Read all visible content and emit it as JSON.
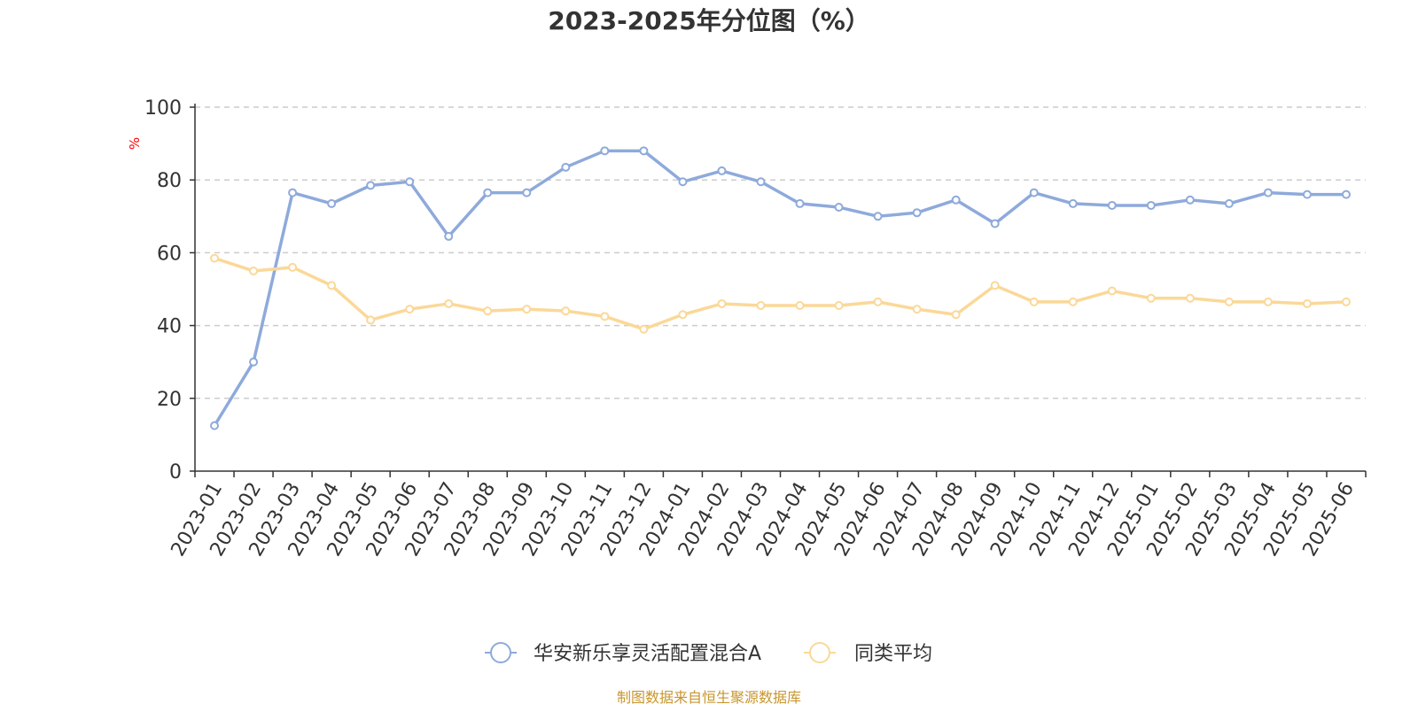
{
  "chart_data": {
    "type": "line",
    "title": "2023-2025年分位图（%）",
    "ylabel": "%",
    "xlabel": "",
    "ylim": [
      0,
      100
    ],
    "yticks": [
      0,
      20,
      40,
      60,
      80,
      100
    ],
    "grid": true,
    "legend_position": "bottom",
    "categories": [
      "2023-01",
      "2023-02",
      "2023-03",
      "2023-04",
      "2023-05",
      "2023-06",
      "2023-07",
      "2023-08",
      "2023-09",
      "2023-10",
      "2023-11",
      "2023-12",
      "2024-01",
      "2024-02",
      "2024-03",
      "2024-04",
      "2024-05",
      "2024-06",
      "2024-07",
      "2024-08",
      "2024-09",
      "2024-10",
      "2024-11",
      "2024-12",
      "2025-01",
      "2025-02",
      "2025-03",
      "2025-04",
      "2025-05",
      "2025-06"
    ],
    "series": [
      {
        "name": "华安新乐享灵活配置混合A",
        "color": "#8eaadb",
        "values": [
          12.5,
          30.0,
          76.5,
          73.5,
          78.5,
          79.5,
          64.5,
          76.5,
          76.5,
          83.5,
          88.0,
          88.0,
          79.5,
          82.5,
          79.5,
          73.5,
          72.5,
          70.0,
          71.0,
          74.5,
          68.0,
          76.5,
          73.5,
          73.0,
          73.0,
          74.5,
          73.5,
          76.5,
          76.0,
          76.0
        ]
      },
      {
        "name": "同类平均",
        "color": "#fbd898",
        "values": [
          58.5,
          55.0,
          56.0,
          51.0,
          41.5,
          44.5,
          46.0,
          44.0,
          44.5,
          44.0,
          42.5,
          39.0,
          43.0,
          46.0,
          45.5,
          45.5,
          45.5,
          46.5,
          44.5,
          43.0,
          51.0,
          46.5,
          46.5,
          49.5,
          47.5,
          47.5,
          46.5,
          46.5,
          46.0,
          46.5
        ]
      }
    ]
  },
  "footer": {
    "source": "制图数据来自恒生聚源数据库"
  },
  "colors": {
    "axis": "#333333",
    "grid": "#cccccc",
    "unit": "#ff0000",
    "source": "#c8962e"
  }
}
